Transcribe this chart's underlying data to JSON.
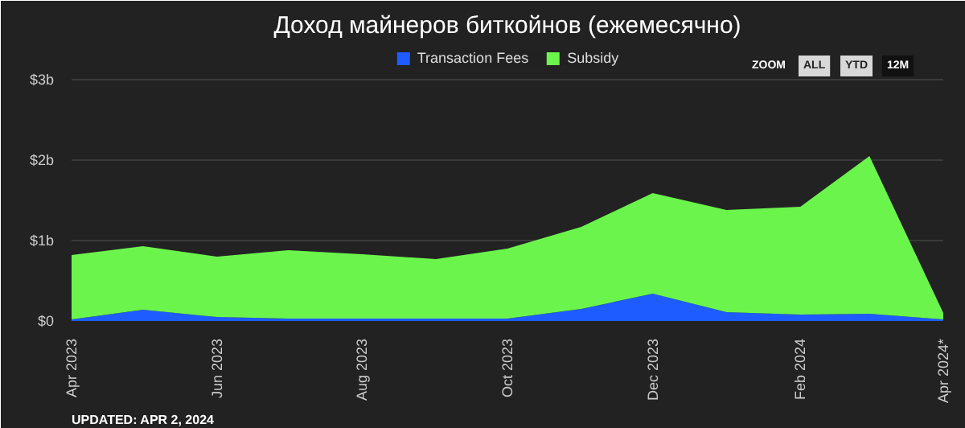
{
  "chart_data": {
    "type": "area",
    "stacked": true,
    "title": "Доход майнеров биткойнов (ежемесячно)",
    "x": [
      "2023-04",
      "2023-05",
      "2023-06",
      "2023-07",
      "2023-08",
      "2023-09",
      "2023-10",
      "2023-11",
      "2023-12",
      "2024-01",
      "2024-02",
      "2024-03",
      "2024-04"
    ],
    "series": [
      {
        "name": "Transaction Fees",
        "color": "#1f5cff",
        "values": [
          0.02,
          0.14,
          0.05,
          0.03,
          0.03,
          0.03,
          0.03,
          0.15,
          0.34,
          0.11,
          0.08,
          0.09,
          0.02
        ]
      },
      {
        "name": "Subsidy",
        "color": "#6bf54c",
        "values": [
          0.8,
          0.79,
          0.75,
          0.85,
          0.8,
          0.74,
          0.87,
          1.02,
          1.25,
          1.27,
          1.34,
          1.96,
          0.08
        ]
      }
    ],
    "xlim": [
      "2023-04",
      "2024-04"
    ],
    "xticks": [
      {
        "value": "2023-04",
        "label": "Apr 2023"
      },
      {
        "value": "2023-06",
        "label": "Jun 2023"
      },
      {
        "value": "2023-08",
        "label": "Aug 2023"
      },
      {
        "value": "2023-10",
        "label": "Oct 2023"
      },
      {
        "value": "2023-12",
        "label": "Dec 2023"
      },
      {
        "value": "2024-02",
        "label": "Feb 2024"
      },
      {
        "value": "2024-04",
        "label": "Apr 2024*"
      }
    ],
    "ylim": [
      0,
      3.4
    ],
    "yticks": [
      {
        "value": 0,
        "label": "$0"
      },
      {
        "value": 1,
        "label": "$1b"
      },
      {
        "value": 2,
        "label": "$2b"
      },
      {
        "value": 3,
        "label": "$3b"
      }
    ],
    "grid": "y",
    "legend": "top",
    "annotations": [
      "UPDATED: APR 2, 2024",
      "ZOOM",
      "ALL",
      "YTD",
      "12M"
    ]
  }
}
